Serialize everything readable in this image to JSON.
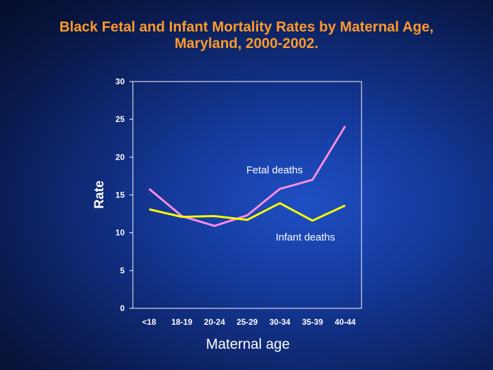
{
  "title_line1": "Black Fetal and Infant Mortality Rates by Maternal Age,",
  "title_line2": "Maryland, 2000-2002.",
  "colors": {
    "title": "#ff9a2a",
    "fetal": "#ff8ee8",
    "infant": "#ffff00",
    "axis": "#ffffff"
  },
  "chart_data": {
    "type": "line",
    "xlabel": "Maternal age",
    "ylabel": "Rate",
    "ylim": [
      0,
      30
    ],
    "yticks": [
      0,
      5,
      10,
      15,
      20,
      25,
      30
    ],
    "categories": [
      "<18",
      "18-19",
      "20-24",
      "25-29",
      "30-34",
      "35-39",
      "40-44"
    ],
    "grid": false,
    "series": [
      {
        "name": "Fetal deaths",
        "values": [
          15.8,
          12.2,
          10.9,
          12.3,
          15.8,
          17.0,
          24.1
        ]
      },
      {
        "name": "Infant deaths",
        "values": [
          13.1,
          12.1,
          12.2,
          11.7,
          13.9,
          11.6,
          13.6
        ]
      }
    ]
  }
}
